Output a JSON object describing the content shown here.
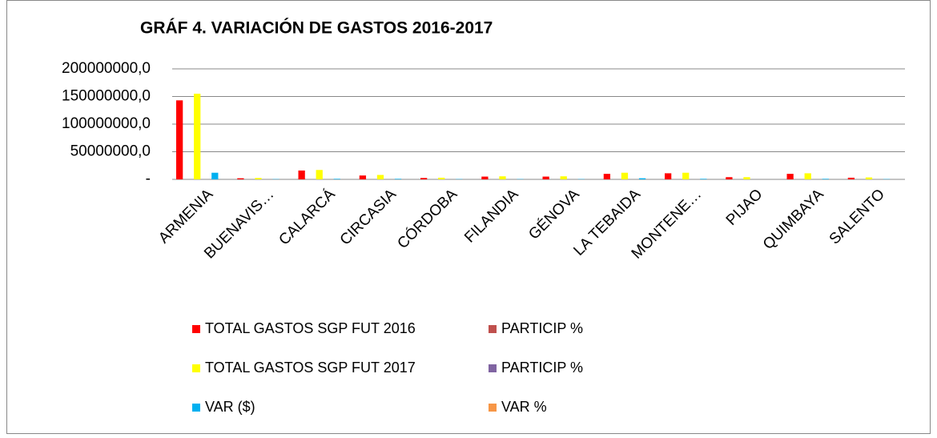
{
  "chart_data": {
    "type": "bar",
    "title": "GRÁF 4. VARIACIÓN DE GASTOS 2016-2017",
    "categories": [
      "ARMENIA",
      "BUENAVIS…",
      "CALARCÁ",
      "CIRCASIA",
      "CÓRDOBA",
      "FILANDIA",
      "GÉNOVA",
      "LA TEBAIDA",
      "MONTENE…",
      "PIJAO",
      "QUIMBAYA",
      "SALENTO"
    ],
    "series": [
      {
        "name": "TOTAL GASTOS SGP FUT 2016",
        "color": "#ff0000",
        "values": [
          143000000,
          2000000,
          16000000,
          7000000,
          2500000,
          5000000,
          5000000,
          10000000,
          11000000,
          4000000,
          10000000,
          3000000
        ]
      },
      {
        "name": "PARTICIP %",
        "color": "#c0504d",
        "values": [
          65.4,
          0.9,
          7.3,
          3.2,
          1.1,
          2.3,
          2.3,
          4.6,
          5.0,
          1.8,
          4.6,
          1.4
        ]
      },
      {
        "name": " TOTAL GASTOS SGP FUT 2017",
        "color": "#ffff00",
        "values": [
          155000000,
          2500000,
          17000000,
          8000000,
          3000000,
          5500000,
          5500000,
          12000000,
          12000000,
          4000000,
          11000000,
          3500000
        ]
      },
      {
        "name": "PARTICIP %",
        "color": "#8064a2",
        "values": [
          64.6,
          1.0,
          7.1,
          3.3,
          1.2,
          2.3,
          2.3,
          5.0,
          5.0,
          1.7,
          4.6,
          1.5
        ]
      },
      {
        "name": "VAR ($)",
        "color": "#00b0f0",
        "values": [
          12000000,
          500000,
          1000000,
          1000000,
          500000,
          500000,
          500000,
          2000000,
          1000000,
          0,
          1000000,
          500000
        ]
      },
      {
        "name": "VAR %",
        "color": "#f79646",
        "values": [
          8,
          25,
          6,
          14,
          20,
          10,
          10,
          20,
          9,
          0,
          10,
          17
        ]
      }
    ],
    "ylim": [
      0,
      200000000
    ],
    "yticks": [
      {
        "value": 0,
        "label": "-"
      },
      {
        "value": 50000000,
        "label": "50000000,0"
      },
      {
        "value": 100000000,
        "label": "100000000,0"
      },
      {
        "value": 150000000,
        "label": "150000000,0"
      },
      {
        "value": 200000000,
        "label": "200000000,0"
      }
    ],
    "grid": true,
    "legend": "bottom"
  }
}
